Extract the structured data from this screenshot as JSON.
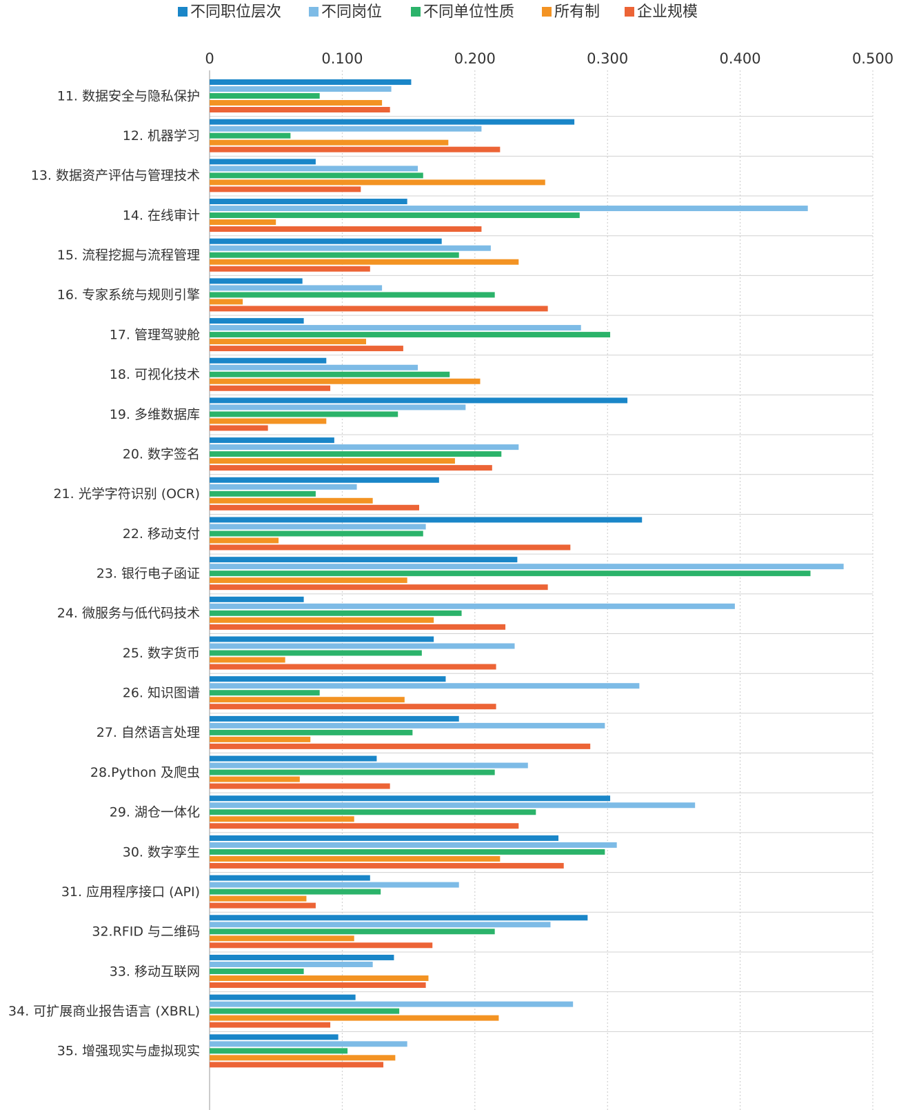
{
  "chart_data": {
    "type": "hbar",
    "categories": [
      "11. 数据安全与隐私保护",
      "12. 机器学习",
      "13. 数据资产评估与管理技术",
      "14. 在线审计",
      "15. 流程挖掘与流程管理",
      "16. 专家系统与规则引擎",
      "17. 管理驾驶舱",
      "18. 可视化技术",
      "19. 多维数据库",
      "20. 数字签名",
      "21. 光学字符识别 (OCR)",
      "22. 移动支付",
      "23. 银行电子函证",
      "24. 微服务与低代码技术",
      "25. 数字货币",
      "26. 知识图谱",
      "27. 自然语言处理",
      "28.Python 及爬虫",
      "29. 湖仓一体化",
      "30. 数字孪生",
      "31. 应用程序接口 (API)",
      "32.RFID 与二维码",
      "33. 移动互联网",
      "34. 可扩展商业报告语言 (XBRL)",
      "35. 增强现实与虚拟现实"
    ],
    "series": [
      {
        "name": "不同职位层次",
        "color": "#1a86c8",
        "values": [
          0.152,
          0.275,
          0.08,
          0.149,
          0.175,
          0.07,
          0.071,
          0.088,
          0.315,
          0.094,
          0.173,
          0.326,
          0.232,
          0.071,
          0.169,
          0.178,
          0.188,
          0.126,
          0.302,
          0.263,
          0.121,
          0.285,
          0.139,
          0.11,
          0.097
        ]
      },
      {
        "name": "不同岗位",
        "color": "#7dbbe6",
        "values": [
          0.137,
          0.205,
          0.157,
          0.451,
          0.212,
          0.13,
          0.28,
          0.157,
          0.193,
          0.233,
          0.111,
          0.163,
          0.478,
          0.396,
          0.23,
          0.324,
          0.298,
          0.24,
          0.366,
          0.307,
          0.188,
          0.257,
          0.123,
          0.274,
          0.149
        ]
      },
      {
        "name": "不同单位性质",
        "color": "#2bb36a",
        "values": [
          0.083,
          0.061,
          0.161,
          0.279,
          0.188,
          0.215,
          0.302,
          0.181,
          0.142,
          0.22,
          0.08,
          0.161,
          0.453,
          0.19,
          0.16,
          0.083,
          0.153,
          0.215,
          0.246,
          0.298,
          0.129,
          0.215,
          0.071,
          0.143,
          0.104
        ]
      },
      {
        "name": "所有制",
        "color": "#f39323",
        "values": [
          0.13,
          0.18,
          0.253,
          0.05,
          0.233,
          0.025,
          0.118,
          0.204,
          0.088,
          0.185,
          0.123,
          0.052,
          0.149,
          0.169,
          0.057,
          0.147,
          0.076,
          0.068,
          0.109,
          0.219,
          0.073,
          0.109,
          0.165,
          0.218,
          0.14
        ]
      },
      {
        "name": "企业规模",
        "color": "#ec6436",
        "values": [
          0.136,
          0.219,
          0.114,
          0.205,
          0.121,
          0.255,
          0.146,
          0.091,
          0.044,
          0.213,
          0.158,
          0.272,
          0.255,
          0.223,
          0.216,
          0.216,
          0.287,
          0.136,
          0.233,
          0.267,
          0.08,
          0.168,
          0.163,
          0.091,
          0.131
        ]
      }
    ],
    "xlim": [
      0,
      0.5
    ],
    "xticks": [
      0,
      {
        "value": 0.1,
        "label": "0.100"
      },
      {
        "value": 0.2,
        "label": "0.200"
      },
      {
        "value": 0.3,
        "label": "0.300"
      },
      {
        "value": 0.4,
        "label": "0.400"
      },
      {
        "value": 0.5,
        "label": "0.500"
      }
    ],
    "grid": true
  }
}
